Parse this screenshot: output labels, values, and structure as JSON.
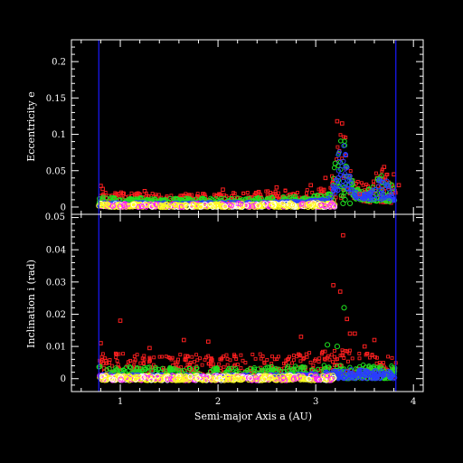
{
  "figure": {
    "background": "#000000",
    "frame_color": "#ffffff",
    "guide_line_color": "#1a1aff",
    "series_colors": [
      "#ff2020",
      "#20e020",
      "#2a3cff",
      "#ffff20",
      "#ff20ff",
      "#ffffff"
    ]
  },
  "chart_data": [
    {
      "type": "scatter",
      "xlabel": "",
      "ylabel": "Eccentricity e",
      "xlim": [
        0.5,
        4.1
      ],
      "ylim": [
        -0.01,
        0.23
      ],
      "yticks": [
        0,
        0.05,
        0.1,
        0.15,
        0.2
      ],
      "ytick_labels": [
        "0",
        "0.05",
        "0.1",
        "0.15",
        "0.2"
      ],
      "top_corner_label": "0.05",
      "vertical_lines_x": [
        0.78,
        3.82
      ],
      "bands": [
        {
          "x": [
            0.78,
            1.5,
            2.2,
            2.9,
            3.15,
            3.25,
            3.3,
            3.35,
            3.42,
            3.55,
            3.65,
            3.72,
            3.82
          ],
          "y_low": [
            0.003,
            0.003,
            0.003,
            0.004,
            0.005,
            0.01,
            0.01,
            0.01,
            0.008,
            0.006,
            0.006,
            0.006,
            0.004
          ],
          "y_high": [
            0.022,
            0.018,
            0.02,
            0.025,
            0.03,
            0.115,
            0.105,
            0.06,
            0.035,
            0.035,
            0.055,
            0.05,
            0.03
          ]
        },
        {
          "x": [
            0.78,
            1.5,
            2.2,
            2.9,
            3.15,
            3.25,
            3.3,
            3.35,
            3.42,
            3.55,
            3.65,
            3.72,
            3.82
          ],
          "y_low": [
            0.003,
            0.003,
            0.003,
            0.004,
            0.006,
            0.015,
            0.015,
            0.015,
            0.01,
            0.008,
            0.008,
            0.008,
            0.006
          ],
          "y_high": [
            0.014,
            0.012,
            0.013,
            0.015,
            0.02,
            0.11,
            0.1,
            0.05,
            0.025,
            0.025,
            0.045,
            0.045,
            0.022
          ]
        },
        {
          "x": [
            0.78,
            1.5,
            2.2,
            2.9,
            3.15,
            3.25,
            3.3,
            3.35,
            3.42,
            3.55,
            3.65,
            3.72,
            3.82
          ],
          "y_low": [
            0.002,
            0.002,
            0.002,
            0.003,
            0.008,
            0.025,
            0.025,
            0.02,
            0.012,
            0.01,
            0.01,
            0.012,
            0.008
          ],
          "y_high": [
            0.007,
            0.006,
            0.007,
            0.008,
            0.014,
            0.1,
            0.09,
            0.045,
            0.02,
            0.02,
            0.04,
            0.04,
            0.018
          ]
        },
        {
          "x": [
            0.78,
            1.5,
            2.2,
            2.9,
            3.2
          ],
          "y_low": [
            0.0,
            0.0,
            0.0,
            0.0,
            0.0
          ],
          "y_high": [
            0.005,
            0.004,
            0.005,
            0.006,
            0.006
          ]
        }
      ],
      "scatter_points": [
        {
          "x": 0.8,
          "y": 0.029,
          "c": 0
        },
        {
          "x": 0.82,
          "y": 0.025,
          "c": 0
        },
        {
          "x": 1.25,
          "y": 0.022,
          "c": 0
        },
        {
          "x": 2.05,
          "y": 0.024,
          "c": 0
        },
        {
          "x": 2.6,
          "y": 0.027,
          "c": 0
        },
        {
          "x": 2.95,
          "y": 0.03,
          "c": 0
        },
        {
          "x": 3.1,
          "y": 0.04,
          "c": 0
        },
        {
          "x": 3.2,
          "y": 0.06,
          "c": 1
        },
        {
          "x": 3.22,
          "y": 0.118,
          "c": 0
        },
        {
          "x": 3.27,
          "y": 0.115,
          "c": 0
        },
        {
          "x": 3.28,
          "y": 0.005,
          "c": 1
        },
        {
          "x": 3.3,
          "y": 0.01,
          "c": 1
        },
        {
          "x": 3.35,
          "y": 0.005,
          "c": 1
        },
        {
          "x": 3.45,
          "y": 0.018,
          "c": 0
        },
        {
          "x": 3.7,
          "y": 0.055,
          "c": 0
        },
        {
          "x": 3.75,
          "y": 0.008,
          "c": 1
        },
        {
          "x": 3.8,
          "y": 0.045,
          "c": 0
        },
        {
          "x": 3.85,
          "y": 0.03,
          "c": 0
        }
      ]
    },
    {
      "type": "scatter",
      "xlabel": "Semi-major Axis a (AU)",
      "ylabel": "Inclination i (rad)",
      "xlim": [
        0.5,
        4.1
      ],
      "ylim": [
        -0.004,
        0.051
      ],
      "xticks": [
        1,
        2,
        3,
        4
      ],
      "xtick_labels": [
        "1",
        "2",
        "3",
        "4"
      ],
      "yticks": [
        0,
        0.01,
        0.02,
        0.03,
        0.04
      ],
      "ytick_labels": [
        "0",
        "0.01",
        "0.02",
        "0.03",
        "0.04"
      ],
      "vertical_lines_x": [
        0.78,
        3.82
      ],
      "bands": [
        {
          "x": [
            0.78,
            1.5,
            2.2,
            2.9,
            3.3,
            3.82
          ],
          "y_low": [
            0.0,
            0.0,
            0.0,
            0.0,
            0.0,
            0.0
          ],
          "y_high": [
            0.008,
            0.0075,
            0.0075,
            0.008,
            0.009,
            0.007
          ]
        },
        {
          "x": [
            0.78,
            1.5,
            2.2,
            2.9,
            3.3,
            3.82
          ],
          "y_low": [
            0.0,
            0.0,
            0.0,
            0.0,
            0.0,
            0.0
          ],
          "y_high": [
            0.004,
            0.0035,
            0.0035,
            0.004,
            0.0045,
            0.004
          ]
        },
        {
          "x": [
            0.78,
            1.5,
            2.2,
            2.9,
            3.3,
            3.82
          ],
          "y_low": [
            0.0,
            0.0,
            0.0,
            0.0,
            0.0,
            0.0
          ],
          "y_high": [
            0.0015,
            0.0012,
            0.0012,
            0.0015,
            0.003,
            0.0025
          ]
        },
        {
          "x": [
            0.78,
            1.5,
            2.2,
            2.9,
            3.2
          ],
          "y_low": [
            -0.0005,
            -0.0005,
            -0.0005,
            -0.0005,
            -0.0005
          ],
          "y_high": [
            0.001,
            0.001,
            0.001,
            0.001,
            0.001
          ]
        }
      ],
      "scatter_points": [
        {
          "x": 3.28,
          "y": 0.0445,
          "c": 0
        },
        {
          "x": 3.18,
          "y": 0.029,
          "c": 0
        },
        {
          "x": 3.25,
          "y": 0.027,
          "c": 0
        },
        {
          "x": 3.29,
          "y": 0.022,
          "c": 1
        },
        {
          "x": 3.32,
          "y": 0.0185,
          "c": 0
        },
        {
          "x": 1.0,
          "y": 0.018,
          "c": 0
        },
        {
          "x": 3.35,
          "y": 0.014,
          "c": 0
        },
        {
          "x": 3.4,
          "y": 0.014,
          "c": 0
        },
        {
          "x": 2.85,
          "y": 0.013,
          "c": 0
        },
        {
          "x": 1.65,
          "y": 0.012,
          "c": 0
        },
        {
          "x": 1.9,
          "y": 0.0115,
          "c": 0
        },
        {
          "x": 0.8,
          "y": 0.011,
          "c": 0
        },
        {
          "x": 3.22,
          "y": 0.01,
          "c": 1
        },
        {
          "x": 1.3,
          "y": 0.0095,
          "c": 0
        },
        {
          "x": 3.12,
          "y": 0.0105,
          "c": 1
        },
        {
          "x": 3.5,
          "y": 0.01,
          "c": 0
        },
        {
          "x": 3.6,
          "y": 0.012,
          "c": 0
        }
      ]
    }
  ]
}
